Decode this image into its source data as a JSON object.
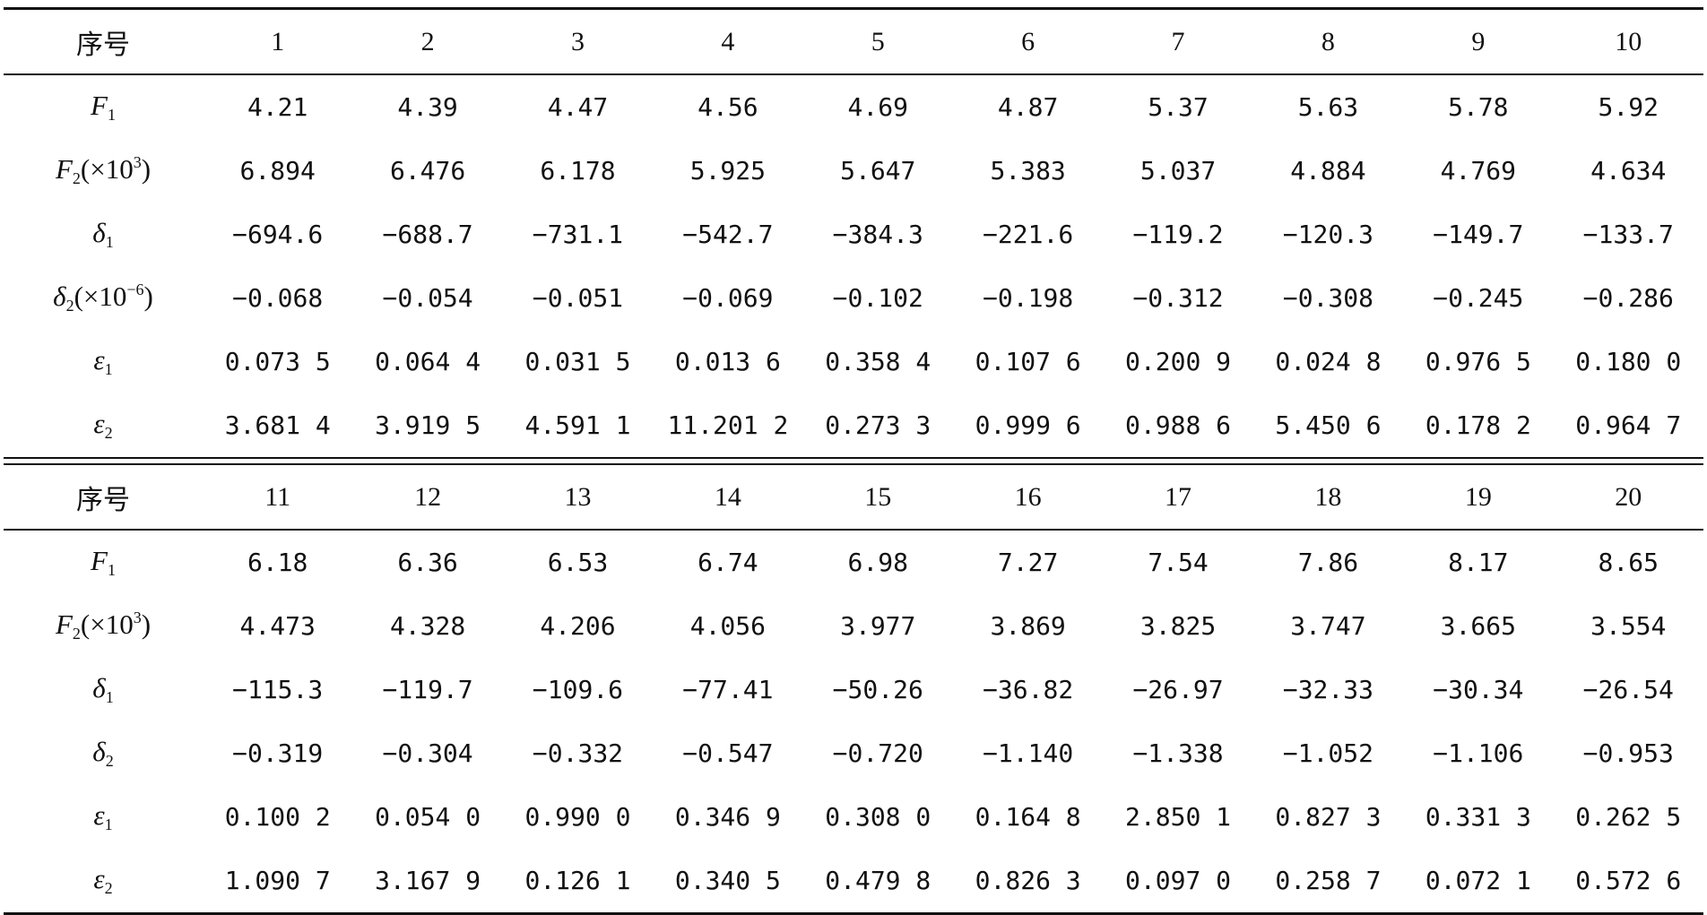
{
  "sections": [
    {
      "header_label": "序号",
      "columns": [
        "1",
        "2",
        "3",
        "4",
        "5",
        "6",
        "7",
        "8",
        "9",
        "10"
      ],
      "rows": [
        {
          "sym": "F",
          "sub": "1",
          "pre": "",
          "sup": "",
          "post": "",
          "values": [
            "4.21",
            "4.39",
            "4.47",
            "4.56",
            "4.69",
            "4.87",
            "5.37",
            "5.63",
            "5.78",
            "5.92"
          ]
        },
        {
          "sym": "F",
          "sub": "2",
          "pre": "(×10",
          "sup": "3",
          "post": ")",
          "values": [
            "6.894",
            "6.476",
            "6.178",
            "5.925",
            "5.647",
            "5.383",
            "5.037",
            "4.884",
            "4.769",
            "4.634"
          ]
        },
        {
          "sym": "δ",
          "sub": "1",
          "pre": "",
          "sup": "",
          "post": "",
          "values": [
            "−694.6",
            "−688.7",
            "−731.1",
            "−542.7",
            "−384.3",
            "−221.6",
            "−119.2",
            "−120.3",
            "−149.7",
            "−133.7"
          ]
        },
        {
          "sym": "δ",
          "sub": "2",
          "pre": "(×10",
          "sup": "−6",
          "post": ")",
          "values": [
            "−0.068",
            "−0.054",
            "−0.051",
            "−0.069",
            "−0.102",
            "−0.198",
            "−0.312",
            "−0.308",
            "−0.245",
            "−0.286"
          ]
        },
        {
          "sym": "ε",
          "sub": "1",
          "pre": "",
          "sup": "",
          "post": "",
          "values": [
            "0.073 5",
            "0.064 4",
            "0.031 5",
            "0.013 6",
            "0.358 4",
            "0.107 6",
            "0.200 9",
            "0.024 8",
            "0.976 5",
            "0.180 0"
          ]
        },
        {
          "sym": "ε",
          "sub": "2",
          "pre": "",
          "sup": "",
          "post": "",
          "values": [
            "3.681 4",
            "3.919 5",
            "4.591 1",
            "11.201 2",
            "0.273 3",
            "0.999 6",
            "0.988 6",
            "5.450 6",
            "0.178 2",
            "0.964 7"
          ]
        }
      ]
    },
    {
      "header_label": "序号",
      "columns": [
        "11",
        "12",
        "13",
        "14",
        "15",
        "16",
        "17",
        "18",
        "19",
        "20"
      ],
      "rows": [
        {
          "sym": "F",
          "sub": "1",
          "pre": "",
          "sup": "",
          "post": "",
          "values": [
            "6.18",
            "6.36",
            "6.53",
            "6.74",
            "6.98",
            "7.27",
            "7.54",
            "7.86",
            "8.17",
            "8.65"
          ]
        },
        {
          "sym": "F",
          "sub": "2",
          "pre": "(×10",
          "sup": "3",
          "post": ")",
          "values": [
            "4.473",
            "4.328",
            "4.206",
            "4.056",
            "3.977",
            "3.869",
            "3.825",
            "3.747",
            "3.665",
            "3.554"
          ]
        },
        {
          "sym": "δ",
          "sub": "1",
          "pre": "",
          "sup": "",
          "post": "",
          "values": [
            "−115.3",
            "−119.7",
            "−109.6",
            "−77.41",
            "−50.26",
            "−36.82",
            "−26.97",
            "−32.33",
            "−30.34",
            "−26.54"
          ]
        },
        {
          "sym": "δ",
          "sub": "2",
          "pre": "",
          "sup": "",
          "post": "",
          "values": [
            "−0.319",
            "−0.304",
            "−0.332",
            "−0.547",
            "−0.720",
            "−1.140",
            "−1.338",
            "−1.052",
            "−1.106",
            "−0.953"
          ]
        },
        {
          "sym": "ε",
          "sub": "1",
          "pre": "",
          "sup": "",
          "post": "",
          "values": [
            "0.100 2",
            "0.054 0",
            "0.990 0",
            "0.346 9",
            "0.308 0",
            "0.164 8",
            "2.850 1",
            "0.827 3",
            "0.331 3",
            "0.262 5"
          ]
        },
        {
          "sym": "ε",
          "sub": "2",
          "pre": "",
          "sup": "",
          "post": "",
          "values": [
            "1.090 7",
            "3.167 9",
            "0.126 1",
            "0.340 5",
            "0.479 8",
            "0.826 3",
            "0.097 0",
            "0.258 7",
            "0.072 1",
            "0.572 6"
          ]
        }
      ]
    }
  ]
}
